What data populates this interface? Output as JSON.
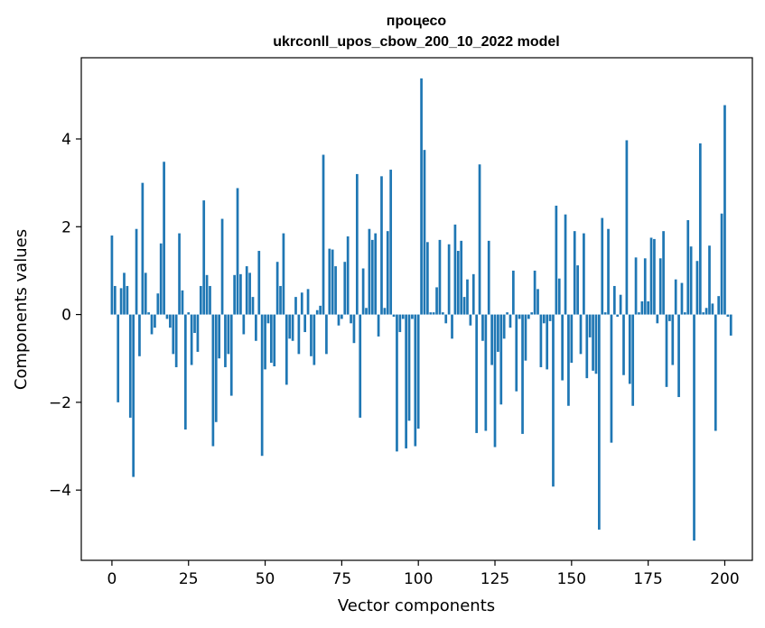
{
  "chart_data": {
    "type": "bar",
    "title_line1": "процесо",
    "title_line2": "ukrconll_upos_cbow_200_10_2022 model",
    "xlabel": "Vector components",
    "ylabel": "Components values",
    "xlim": [
      -10,
      209
    ],
    "ylim": [
      -5.6,
      5.85
    ],
    "xticks": [
      0,
      25,
      50,
      75,
      100,
      125,
      150,
      175,
      200
    ],
    "yticks": [
      -4,
      -2,
      0,
      2,
      4
    ],
    "ytick_labels": [
      "−4",
      "−2",
      "0",
      "2",
      "4"
    ],
    "bar_color": "#1f77b4",
    "values": [
      1.8,
      0.65,
      -2.0,
      0.6,
      0.95,
      0.65,
      -2.35,
      -3.7,
      1.95,
      -0.95,
      3.0,
      0.95,
      0.05,
      -0.45,
      -0.3,
      0.48,
      1.62,
      3.48,
      -0.1,
      -0.3,
      -0.9,
      -1.2,
      1.85,
      0.55,
      -2.62,
      0.05,
      -1.15,
      -0.42,
      -0.85,
      0.65,
      2.6,
      0.9,
      0.65,
      -3.0,
      -2.45,
      -1.0,
      2.18,
      -1.2,
      -0.9,
      -1.85,
      0.9,
      2.88,
      0.92,
      -0.45,
      1.1,
      0.95,
      0.4,
      -0.6,
      1.45,
      -3.22,
      -1.25,
      -0.2,
      -1.1,
      -1.18,
      1.2,
      0.65,
      1.85,
      -1.6,
      -0.55,
      -0.6,
      0.4,
      -0.9,
      0.5,
      -0.4,
      0.58,
      -0.95,
      -1.15,
      0.1,
      0.2,
      3.64,
      -0.9,
      1.5,
      1.48,
      1.1,
      -0.25,
      -0.1,
      1.2,
      1.78,
      -0.2,
      -0.65,
      3.2,
      -2.35,
      1.05,
      0.15,
      1.95,
      1.7,
      1.85,
      -0.5,
      3.15,
      0.15,
      1.9,
      3.3,
      -0.05,
      -3.12,
      -0.4,
      -0.1,
      -3.05,
      -2.42,
      -0.1,
      -3.0,
      -2.6,
      5.38,
      3.75,
      1.65,
      0.05,
      0.05,
      0.62,
      1.7,
      0.05,
      -0.2,
      1.6,
      -0.55,
      2.05,
      1.45,
      1.68,
      0.4,
      0.8,
      -0.25,
      0.92,
      -2.7,
      3.42,
      -0.6,
      -2.65,
      1.68,
      -1.15,
      -3.02,
      -0.85,
      -2.05,
      -0.55,
      0.05,
      -0.3,
      1.0,
      -1.75,
      -0.1,
      -2.72,
      -1.05,
      -0.1,
      0.05,
      1.0,
      0.58,
      -1.2,
      -0.2,
      -1.25,
      -0.15,
      -3.92,
      2.48,
      0.82,
      -1.5,
      2.28,
      -2.08,
      -1.1,
      1.9,
      1.12,
      -0.9,
      1.85,
      -1.45,
      -0.52,
      -1.28,
      -1.35,
      -4.9,
      2.2,
      0.05,
      1.95,
      -2.92,
      0.65,
      -0.05,
      0.45,
      -1.38,
      3.97,
      -1.58,
      -2.08,
      1.3,
      0.05,
      0.3,
      1.28,
      0.3,
      1.75,
      1.72,
      -0.2,
      1.28,
      1.9,
      -1.65,
      -0.15,
      -1.15,
      0.8,
      -1.88,
      0.72,
      0.05,
      2.15,
      1.55,
      -5.15,
      1.22,
      3.9,
      0.05,
      0.15,
      1.57,
      0.25,
      -2.65,
      0.42,
      2.3,
      4.77,
      -0.05,
      -0.48
    ]
  }
}
